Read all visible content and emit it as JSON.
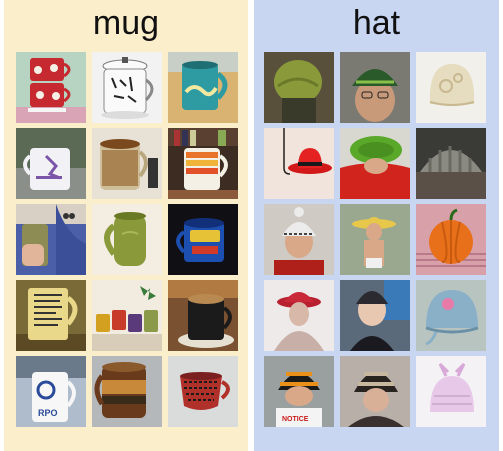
{
  "panels": [
    {
      "label": "mug",
      "background": "#fbeecb"
    },
    {
      "label": "hat",
      "background": "#c9d6f2"
    }
  ],
  "mug_tiles": [
    {
      "subject": "red-floral-mug-stack"
    },
    {
      "subject": "white-lidded-asian-mug"
    },
    {
      "subject": "teal-bird-mug"
    },
    {
      "subject": "white-purple-graphic-mug"
    },
    {
      "subject": "brown-glass-mug"
    },
    {
      "subject": "orange-stripe-mug-on-shelf"
    },
    {
      "subject": "green-mug-in-hand"
    },
    {
      "subject": "olive-green-pottery-mug"
    },
    {
      "subject": "blue-coffee-mug-dark"
    },
    {
      "subject": "mug-with-printed-text"
    },
    {
      "subject": "colorful-mug-set"
    },
    {
      "subject": "dark-mug-on-saucer"
    },
    {
      "subject": "white-logo-mug"
    },
    {
      "subject": "brown-stoneware-mug"
    },
    {
      "subject": "red-patterned-cup"
    }
  ],
  "mug_texts": {
    "logo_mug": "RPO"
  },
  "hat_tiles": [
    {
      "subject": "green-knit-beanie"
    },
    {
      "subject": "green-striped-cap-man"
    },
    {
      "subject": "cream-crochet-hat"
    },
    {
      "subject": "red-bowler-on-hook"
    },
    {
      "subject": "green-cap-red-coat"
    },
    {
      "subject": "grey-knit-hat-closeup"
    },
    {
      "subject": "white-pom-beanie"
    },
    {
      "subject": "straw-hat-man"
    },
    {
      "subject": "orange-pumpkin-hat"
    },
    {
      "subject": "red-cloche-hat"
    },
    {
      "subject": "dark-woolly-hat"
    },
    {
      "subject": "blue-baby-hat"
    },
    {
      "subject": "orange-striped-beanie"
    },
    {
      "subject": "black-striped-beanie"
    },
    {
      "subject": "pink-bunny-hat"
    }
  ],
  "hat_texts": {
    "notice_shirt": "NOTICE"
  }
}
